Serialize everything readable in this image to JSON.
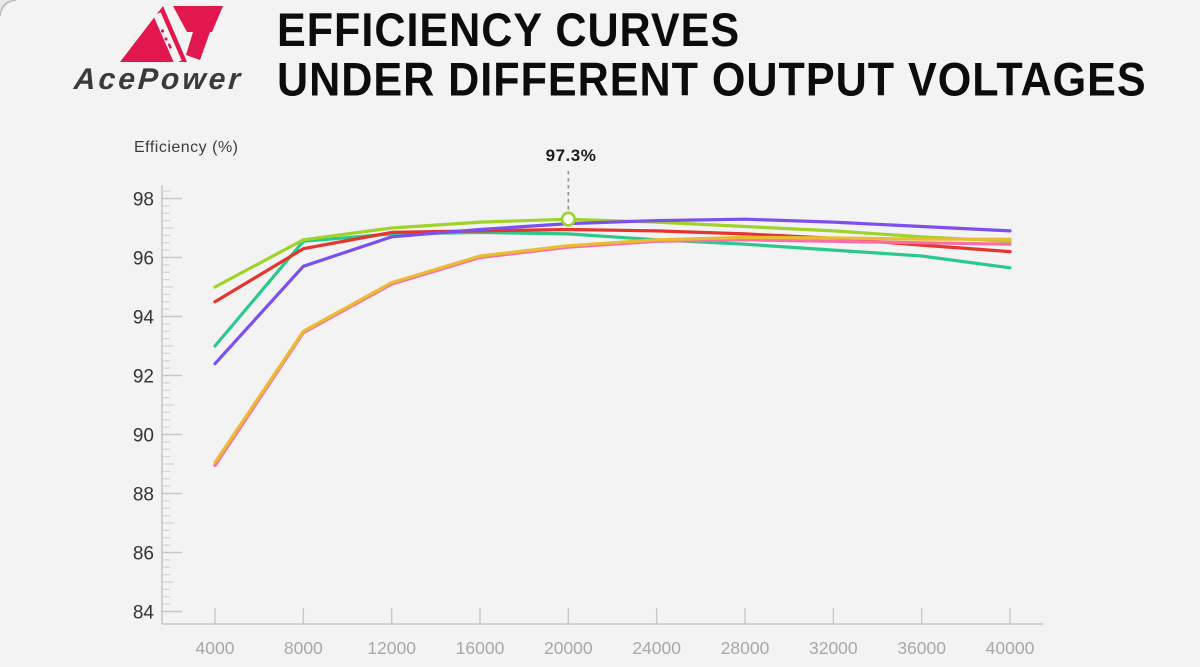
{
  "brand": {
    "name": "AcePower",
    "logo_color": "#e2174d",
    "wordmark_color": "#3a3a3a"
  },
  "title": {
    "line1": "EFFICIENCY CURVES",
    "line2": "UNDER DIFFERENT OUTPUT VOLTAGES"
  },
  "chart_data": {
    "type": "line",
    "title": "Efficiency curves under different output voltages",
    "xlabel": "",
    "ylabel": "Efficiency (%)",
    "x": [
      4000,
      8000,
      12000,
      16000,
      20000,
      24000,
      28000,
      32000,
      36000,
      40000
    ],
    "xlim": [
      1600,
      41500
    ],
    "ylim": [
      83.6,
      98.5
    ],
    "y_major_ticks": [
      98,
      96,
      94,
      92,
      90,
      88,
      86,
      84
    ],
    "grid": false,
    "legend": "none",
    "annotation": {
      "label": "97.3%",
      "x": 20000,
      "y": 97.3,
      "series": "yellow-green"
    },
    "series": [
      {
        "name": "green",
        "color": "#2bc88e",
        "values": [
          93.0,
          96.55,
          96.8,
          96.85,
          96.8,
          96.6,
          96.45,
          96.25,
          96.05,
          95.65
        ]
      },
      {
        "name": "red",
        "color": "#e6352c",
        "values": [
          94.5,
          96.3,
          96.85,
          96.9,
          96.95,
          96.9,
          96.8,
          96.65,
          96.42,
          96.2
        ]
      },
      {
        "name": "yellow-green",
        "color": "#9fd32a",
        "values": [
          95.0,
          96.6,
          97.0,
          97.2,
          97.3,
          97.2,
          97.05,
          96.9,
          96.7,
          96.55
        ]
      },
      {
        "name": "pink",
        "color": "#f96ea6",
        "values": [
          88.95,
          93.45,
          95.1,
          96.0,
          96.35,
          96.55,
          96.6,
          96.55,
          96.5,
          96.45
        ]
      },
      {
        "name": "amber",
        "color": "#e9bd33",
        "values": [
          89.05,
          93.5,
          95.15,
          96.05,
          96.4,
          96.6,
          96.68,
          96.66,
          96.62,
          96.62
        ]
      },
      {
        "name": "violet",
        "color": "#7b50ef",
        "values": [
          92.4,
          95.7,
          96.7,
          96.95,
          97.15,
          97.25,
          97.3,
          97.2,
          97.05,
          96.9
        ]
      }
    ]
  },
  "axis_style": {
    "line_color": "#c6c7ca",
    "minor_tick_color": "#d2d3d6",
    "x_label_color": "#a8a8ac",
    "y_label_color": "#343436"
  }
}
